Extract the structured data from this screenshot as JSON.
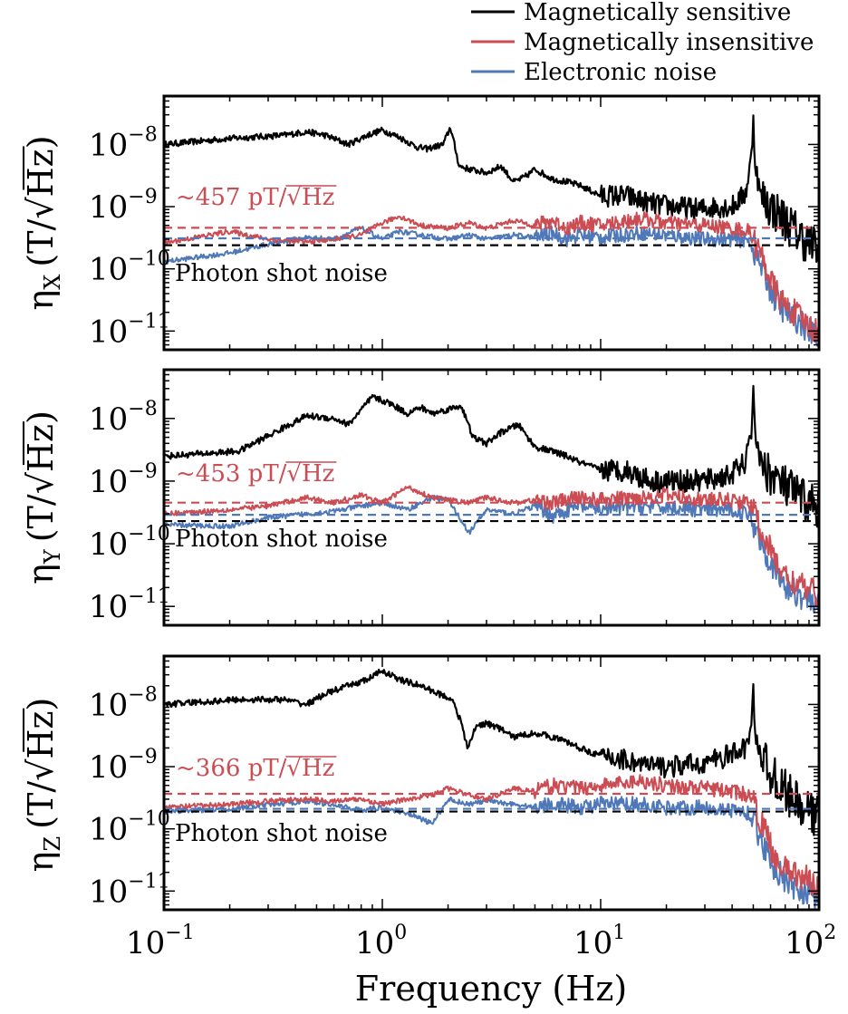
{
  "colors": {
    "sensitive": "#000000",
    "insensitive": "#cc4c53",
    "electronic": "#4f78b8",
    "shot": "#000000"
  },
  "chart_data": {
    "type": "line",
    "xscale": "log",
    "yscale": "log",
    "xlim": [
      0.1,
      100
    ],
    "ylim": [
      5e-12,
      6e-08
    ],
    "xlabel": "Frequency (Hz)",
    "x_tick_labels": [
      {
        "value": 0.1,
        "base": "10",
        "exp": "−1"
      },
      {
        "value": 1,
        "base": "10",
        "exp": "0"
      },
      {
        "value": 10,
        "base": "10",
        "exp": "1"
      },
      {
        "value": 100,
        "base": "10",
        "exp": "2"
      }
    ],
    "y_tick_labels": [
      {
        "value": 1e-08,
        "base": "10",
        "exp": "−8"
      },
      {
        "value": 1e-09,
        "base": "10",
        "exp": "−9"
      },
      {
        "value": 1e-10,
        "base": "10",
        "exp": "−10"
      },
      {
        "value": 1e-11,
        "base": "10",
        "exp": "−11"
      }
    ],
    "legend": {
      "position": "top-right",
      "entries": [
        {
          "key": "sensitive",
          "label": "Magnetically sensitive"
        },
        {
          "key": "insensitive",
          "label": "Magnetically insensitive"
        },
        {
          "key": "electronic",
          "label": "Electronic noise"
        }
      ]
    },
    "panels": [
      {
        "id": "x",
        "ylabel_main": "η",
        "ylabel_sub": "X",
        "ylabel_unit": "(T/√Hz)",
        "annotation": "~457 pT/√Hz",
        "shot_label": "Photon shot noise",
        "ref_levels": {
          "insensitive": 4.57e-10,
          "electronic": 3.1e-10,
          "shot": 2.4e-10
        },
        "series": [
          {
            "key": "sensitive",
            "name": "Magnetically sensitive",
            "x": [
              0.1,
              0.2,
              0.35,
              0.45,
              0.55,
              0.7,
              0.85,
              1.0,
              1.2,
              1.45,
              1.6,
              1.9,
              2.05,
              2.25,
              2.5,
              3.0,
              3.5,
              4.0,
              4.5,
              5.0,
              6.0,
              7.0,
              8.0,
              10.0,
              13.0,
              17.0,
              22.0,
              28.0,
              34.0,
              40.0,
              46.0,
              49.0,
              50.0,
              51.0,
              54.0,
              60.0,
              70.0,
              85.0,
              100.0
            ],
            "y": [
              1e-08,
              1.25e-08,
              1.4e-08,
              1.6e-08,
              1.4e-08,
              1e-08,
              1.4e-08,
              1.7e-08,
              1.3e-08,
              9e-09,
              8.5e-09,
              1e-08,
              1.9e-08,
              4.5e-09,
              4e-09,
              3.5e-09,
              4.5e-09,
              2.5e-09,
              3e-09,
              4e-09,
              2.8e-09,
              2.5e-09,
              2.2e-09,
              1.5e-09,
              1.5e-09,
              1.1e-09,
              1e-09,
              9e-10,
              1e-09,
              1e-09,
              1.6e-09,
              6e-09,
              2.8e-08,
              5e-09,
              1.5e-09,
              1e-09,
              6e-10,
              3e-10,
              2e-10
            ]
          },
          {
            "key": "insensitive",
            "name": "Magnetically insensitive",
            "x": [
              0.1,
              0.2,
              0.3,
              0.45,
              0.6,
              0.8,
              1.0,
              1.2,
              1.5,
              2.0,
              2.5,
              3.0,
              4.0,
              5.0,
              6.0,
              7.0,
              8.0,
              10.0,
              15.0,
              20.0,
              30.0,
              40.0,
              48.0,
              55.0,
              62.0,
              70.0,
              80.0,
              90.0,
              100.0
            ],
            "y": [
              2.6e-10,
              4e-10,
              3e-10,
              2.7e-10,
              3e-10,
              3.5e-10,
              5.5e-10,
              7e-10,
              5e-10,
              4.5e-10,
              5.5e-10,
              4.5e-10,
              6e-10,
              5e-10,
              6e-10,
              4.5e-10,
              5.5e-10,
              5e-10,
              6.5e-10,
              5.5e-10,
              5e-10,
              4.5e-10,
              4e-10,
              1.5e-10,
              5e-11,
              2.5e-11,
              1.8e-11,
              1.2e-11,
              1e-11
            ]
          },
          {
            "key": "electronic",
            "name": "Electronic noise",
            "x": [
              0.1,
              0.2,
              0.3,
              0.45,
              0.6,
              0.8,
              1.0,
              1.2,
              1.5,
              2.0,
              2.5,
              3.0,
              4.0,
              5.0,
              6.0,
              7.0,
              8.0,
              10.0,
              15.0,
              20.0,
              30.0,
              40.0,
              48.0,
              55.0,
              62.0,
              70.0,
              80.0,
              90.0,
              100.0
            ],
            "y": [
              1.3e-10,
              1.8e-10,
              2.5e-10,
              3.2e-10,
              3e-10,
              4.5e-10,
              3e-10,
              4e-10,
              3.5e-10,
              3e-10,
              3.5e-10,
              3e-10,
              3.5e-10,
              3.2e-10,
              3.8e-10,
              3e-10,
              3.5e-10,
              3.2e-10,
              3.8e-10,
              3.5e-10,
              3e-10,
              3e-10,
              2.8e-10,
              1e-10,
              3.5e-11,
              2e-11,
              1.5e-11,
              1e-11,
              8e-12
            ]
          }
        ]
      },
      {
        "id": "y",
        "ylabel_main": "η",
        "ylabel_sub": "Y",
        "ylabel_unit": "(T/√Hz)",
        "annotation": "~453 pT/√Hz",
        "shot_label": "Photon shot noise",
        "ref_levels": {
          "insensitive": 4.53e-10,
          "electronic": 2.9e-10,
          "shot": 2.3e-10
        },
        "series": [
          {
            "key": "sensitive",
            "name": "Magnetically sensitive",
            "x": [
              0.1,
              0.22,
              0.35,
              0.45,
              0.6,
              0.7,
              0.9,
              1.1,
              1.3,
              1.5,
              1.7,
              2.0,
              2.3,
              2.6,
              3.0,
              3.5,
              4.2,
              5.0,
              6.0,
              7.0,
              8.0,
              10.0,
              13.0,
              17.0,
              22.0,
              28.0,
              34.0,
              40.0,
              46.0,
              49.0,
              50.0,
              51.0,
              54.0,
              60.0,
              70.0,
              85.0,
              100.0
            ],
            "y": [
              2.5e-09,
              3e-09,
              7e-09,
              1.1e-08,
              1e-08,
              8e-09,
              2.2e-08,
              1.7e-08,
              1.2e-08,
              1.5e-08,
              1.2e-08,
              1.4e-08,
              1.6e-08,
              5e-09,
              4e-09,
              6e-09,
              8e-09,
              3.5e-09,
              3e-09,
              2.5e-09,
              2e-09,
              1.5e-09,
              1.5e-09,
              1e-09,
              1e-09,
              1e-09,
              1.1e-09,
              1.3e-09,
              2e-09,
              5e-09,
              4.2e-08,
              6e-09,
              2e-09,
              1.3e-09,
              8e-10,
              5e-10,
              4e-10
            ]
          },
          {
            "key": "insensitive",
            "name": "Magnetically insensitive",
            "x": [
              0.1,
              0.2,
              0.3,
              0.45,
              0.6,
              0.8,
              1.0,
              1.3,
              1.7,
              2.0,
              2.5,
              3.0,
              4.0,
              5.0,
              6.0,
              8.0,
              10.0,
              15.0,
              20.0,
              30.0,
              40.0,
              48.0,
              55.0,
              62.0,
              70.0,
              80.0,
              90.0,
              100.0
            ],
            "y": [
              3e-10,
              3.5e-10,
              4e-10,
              5.5e-10,
              4.5e-10,
              6e-10,
              4.5e-10,
              8e-10,
              5.5e-10,
              5e-10,
              4.5e-10,
              5.5e-10,
              4.5e-10,
              5e-10,
              4.5e-10,
              5.5e-10,
              5e-10,
              5.5e-10,
              6e-10,
              5e-10,
              5e-10,
              4.5e-10,
              1.5e-10,
              6e-11,
              3e-11,
              2.2e-11,
              1.8e-11,
              1.6e-11
            ]
          },
          {
            "key": "electronic",
            "name": "Electronic noise",
            "x": [
              0.1,
              0.2,
              0.3,
              0.45,
              0.6,
              0.8,
              1.0,
              1.3,
              1.7,
              2.0,
              2.5,
              3.0,
              4.0,
              5.0,
              6.0,
              8.0,
              10.0,
              15.0,
              20.0,
              30.0,
              40.0,
              48.0,
              55.0,
              62.0,
              70.0,
              80.0,
              90.0,
              100.0
            ],
            "y": [
              2e-10,
              1.9e-10,
              2.6e-10,
              3e-10,
              3.3e-10,
              4e-10,
              4.5e-10,
              3.5e-10,
              5.5e-10,
              5e-10,
              1.5e-10,
              3.5e-10,
              3e-10,
              4e-10,
              2.8e-10,
              4e-10,
              3.5e-10,
              4e-10,
              3.8e-10,
              3.5e-10,
              3.5e-10,
              3e-10,
              1e-10,
              4e-11,
              2e-11,
              1.6e-11,
              1.3e-11,
              1.2e-11
            ]
          }
        ]
      },
      {
        "id": "z",
        "ylabel_main": "η",
        "ylabel_sub": "Z",
        "ylabel_unit": "(T/√Hz)",
        "annotation": "~366 pT/√Hz",
        "shot_label": "Photon shot noise",
        "ref_levels": {
          "insensitive": 3.66e-10,
          "electronic": 2.1e-10,
          "shot": 1.9e-10
        },
        "series": [
          {
            "key": "sensitive",
            "name": "Magnetically sensitive",
            "x": [
              0.1,
              0.22,
              0.35,
              0.45,
              0.55,
              0.7,
              0.85,
              1.0,
              1.2,
              1.5,
              1.8,
              2.1,
              2.3,
              2.45,
              2.7,
              3.0,
              3.5,
              4.0,
              5.0,
              6.0,
              7.0,
              8.0,
              10.0,
              13.0,
              17.0,
              22.0,
              28.0,
              34.0,
              40.0,
              46.0,
              49.0,
              50.0,
              51.0,
              54.0,
              60.0,
              70.0,
              85.0,
              100.0
            ],
            "y": [
              1e-08,
              1.2e-08,
              1.2e-08,
              1e-08,
              1.5e-08,
              2e-08,
              2.5e-08,
              3.5e-08,
              2.5e-08,
              2e-08,
              1.5e-08,
              1.2e-08,
              5e-09,
              2e-09,
              4.5e-09,
              5e-09,
              4e-09,
              3e-09,
              3.5e-09,
              3e-09,
              2.5e-09,
              2e-09,
              1.5e-09,
              1.3e-09,
              1e-09,
              1e-09,
              1.1e-09,
              1.3e-09,
              1.6e-09,
              2e-09,
              4e-09,
              1.5e-08,
              4e-09,
              1.5e-09,
              8e-10,
              4e-10,
              2e-10,
              1.5e-10
            ]
          },
          {
            "key": "insensitive",
            "name": "Magnetically insensitive",
            "x": [
              0.1,
              0.2,
              0.3,
              0.45,
              0.6,
              0.8,
              1.0,
              1.3,
              1.7,
              2.0,
              2.5,
              3.0,
              4.0,
              5.0,
              6.0,
              8.0,
              10.0,
              15.0,
              20.0,
              30.0,
              40.0,
              48.0,
              55.0,
              62.0,
              70.0,
              80.0,
              90.0,
              100.0
            ],
            "y": [
              2.2e-10,
              2.5e-10,
              2.8e-10,
              3e-10,
              2.8e-10,
              3e-10,
              2.5e-10,
              3e-10,
              3.5e-10,
              4.5e-10,
              3.5e-10,
              3e-10,
              4.5e-10,
              4e-10,
              5e-10,
              4.5e-10,
              5e-10,
              6e-10,
              5e-10,
              4.5e-10,
              4e-10,
              3.5e-10,
              1.2e-10,
              4e-11,
              2.2e-11,
              1.8e-11,
              1.5e-11,
              1.3e-11
            ]
          },
          {
            "key": "electronic",
            "name": "Electronic noise",
            "x": [
              0.1,
              0.2,
              0.3,
              0.45,
              0.6,
              0.8,
              1.0,
              1.3,
              1.7,
              2.0,
              2.5,
              3.0,
              4.0,
              5.0,
              6.0,
              8.0,
              10.0,
              15.0,
              20.0,
              30.0,
              40.0,
              48.0,
              55.0,
              62.0,
              70.0,
              80.0,
              90.0,
              100.0
            ],
            "y": [
              1.9e-10,
              2.1e-10,
              2.4e-10,
              2.8e-10,
              2.4e-10,
              2e-10,
              2.2e-10,
              1.8e-10,
              1.2e-10,
              3e-10,
              2.5e-10,
              2.8e-10,
              2.5e-10,
              2.2e-10,
              2.6e-10,
              2.2e-10,
              2.5e-10,
              2.5e-10,
              2.2e-10,
              2.2e-10,
              2e-10,
              1.8e-10,
              6e-11,
              2.5e-11,
              1.4e-11,
              1.1e-11,
              9e-12,
              7e-12
            ]
          }
        ]
      }
    ]
  }
}
